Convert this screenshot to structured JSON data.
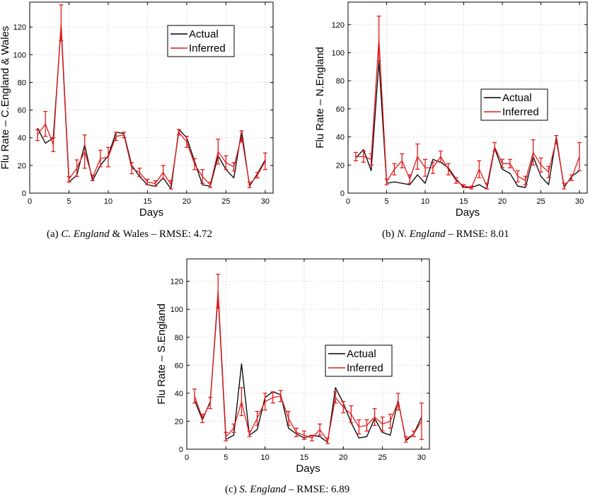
{
  "chart_data": [
    {
      "type": "line",
      "caption": {
        "prefix": "(a)",
        "name": "C. England",
        "name_suffix": " & Wales",
        "metric": " – RMSE: 4.72"
      },
      "xlabel": "Days",
      "ylabel": "Flu Rate – C.England & Wales",
      "xlim": [
        0,
        31
      ],
      "ylim": [
        0,
        138
      ],
      "xticks": [
        0,
        5,
        10,
        15,
        20,
        25,
        30
      ],
      "yticks": [
        0,
        20,
        40,
        60,
        80,
        100,
        120
      ],
      "grid": true,
      "legend_position": "top-right",
      "x": [
        1,
        2,
        3,
        4,
        5,
        6,
        7,
        8,
        9,
        10,
        11,
        12,
        13,
        14,
        15,
        16,
        17,
        18,
        19,
        20,
        21,
        22,
        23,
        24,
        25,
        26,
        27,
        28,
        29,
        30
      ],
      "series": [
        {
          "name": "Actual",
          "color": "#000000",
          "values": [
            47,
            36,
            40,
            120,
            8,
            13,
            35,
            9,
            20,
            27,
            44,
            43,
            20,
            12,
            6,
            5,
            11,
            3,
            46,
            40,
            23,
            6,
            5,
            27,
            17,
            11,
            45,
            5,
            14,
            24
          ]
        },
        {
          "name": "Inferred",
          "color": "#e41a1c",
          "values": [
            42,
            50,
            35,
            123,
            10,
            18,
            30,
            11,
            25,
            26,
            41,
            42,
            18,
            15,
            8,
            7,
            15,
            6,
            44,
            37,
            21,
            12,
            6,
            30,
            22,
            19,
            41,
            6,
            13,
            23
          ],
          "error": [
            4,
            9,
            5,
            13,
            2,
            6,
            12,
            2,
            6,
            7,
            3,
            2,
            4,
            3,
            2,
            2,
            5,
            3,
            2,
            4,
            4,
            5,
            2,
            9,
            5,
            3,
            4,
            2,
            2,
            6
          ]
        }
      ]
    },
    {
      "type": "line",
      "caption": {
        "prefix": "(b)",
        "name": "N. England",
        "name_suffix": "",
        "metric": " – RMSE: 8.01"
      },
      "xlabel": "Days",
      "ylabel": "Flu Rate – N.England",
      "xlim": [
        0,
        31
      ],
      "ylim": [
        0,
        136
      ],
      "xticks": [
        0,
        5,
        10,
        15,
        20,
        25,
        30
      ],
      "yticks": [
        0,
        20,
        40,
        60,
        80,
        100,
        120
      ],
      "grid": true,
      "legend_position": "center-right",
      "x": [
        1,
        2,
        3,
        4,
        5,
        6,
        7,
        8,
        9,
        10,
        11,
        12,
        13,
        14,
        15,
        16,
        17,
        18,
        19,
        20,
        21,
        22,
        23,
        24,
        25,
        26,
        27,
        28,
        29,
        30
      ],
      "series": [
        {
          "name": "Actual",
          "color": "#000000",
          "values": [
            25,
            31,
            16,
            94,
            7,
            8,
            7,
            6,
            13,
            7,
            24,
            22,
            18,
            10,
            4,
            4,
            6,
            3,
            32,
            17,
            14,
            5,
            4,
            26,
            12,
            6,
            40,
            4,
            12,
            16
          ]
        },
        {
          "name": "Inferred",
          "color": "#e41a1c",
          "values": [
            26,
            26,
            24,
            110,
            8,
            17,
            23,
            10,
            26,
            18,
            18,
            26,
            17,
            9,
            5,
            4,
            17,
            5,
            33,
            21,
            21,
            12,
            9,
            29,
            20,
            15,
            38,
            5,
            11,
            26
          ]
        },
        {
          "name": "Inferred error",
          "values": [
            3,
            4,
            4,
            16,
            2,
            4,
            5,
            3,
            9,
            6,
            4,
            4,
            4,
            2,
            1,
            1,
            6,
            2,
            3,
            3,
            3,
            4,
            3,
            9,
            5,
            4,
            3,
            2,
            2,
            10
          ]
        }
      ]
    },
    {
      "type": "line",
      "caption": {
        "prefix": "(c)",
        "name": "S. England",
        "name_suffix": "",
        "metric": " – RMSE: 6.89"
      },
      "xlabel": "Days",
      "ylabel": "Flu Rate – S.England",
      "xlim": [
        0,
        31
      ],
      "ylim": [
        0,
        136
      ],
      "xticks": [
        0,
        5,
        10,
        15,
        20,
        25,
        30
      ],
      "yticks": [
        0,
        20,
        40,
        60,
        80,
        100,
        120
      ],
      "grid": true,
      "legend_position": "center-right",
      "x": [
        1,
        2,
        3,
        4,
        5,
        6,
        7,
        8,
        9,
        10,
        11,
        12,
        13,
        14,
        15,
        16,
        17,
        18,
        19,
        20,
        21,
        22,
        23,
        24,
        25,
        26,
        27,
        28,
        29,
        30
      ],
      "series": [
        {
          "name": "Actual",
          "color": "#000000",
          "values": [
            35,
            21,
            34,
            110,
            7,
            10,
            61,
            10,
            14,
            37,
            41,
            39,
            15,
            11,
            8,
            10,
            9,
            5,
            44,
            33,
            19,
            8,
            9,
            22,
            12,
            10,
            35,
            6,
            11,
            23
          ]
        },
        {
          "name": "Inferred",
          "color": "#e41a1c",
          "values": [
            38,
            22,
            33,
            113,
            9,
            15,
            34,
            11,
            22,
            34,
            37,
            38,
            22,
            12,
            10,
            8,
            14,
            6,
            37,
            30,
            25,
            16,
            17,
            23,
            18,
            20,
            34,
            7,
            11,
            20
          ]
        },
        {
          "name": "Inferred error",
          "values": [
            5,
            3,
            4,
            12,
            3,
            3,
            10,
            2,
            5,
            6,
            4,
            4,
            5,
            3,
            3,
            2,
            4,
            2,
            4,
            4,
            6,
            5,
            4,
            6,
            5,
            5,
            6,
            2,
            2,
            13
          ]
        }
      ]
    }
  ]
}
